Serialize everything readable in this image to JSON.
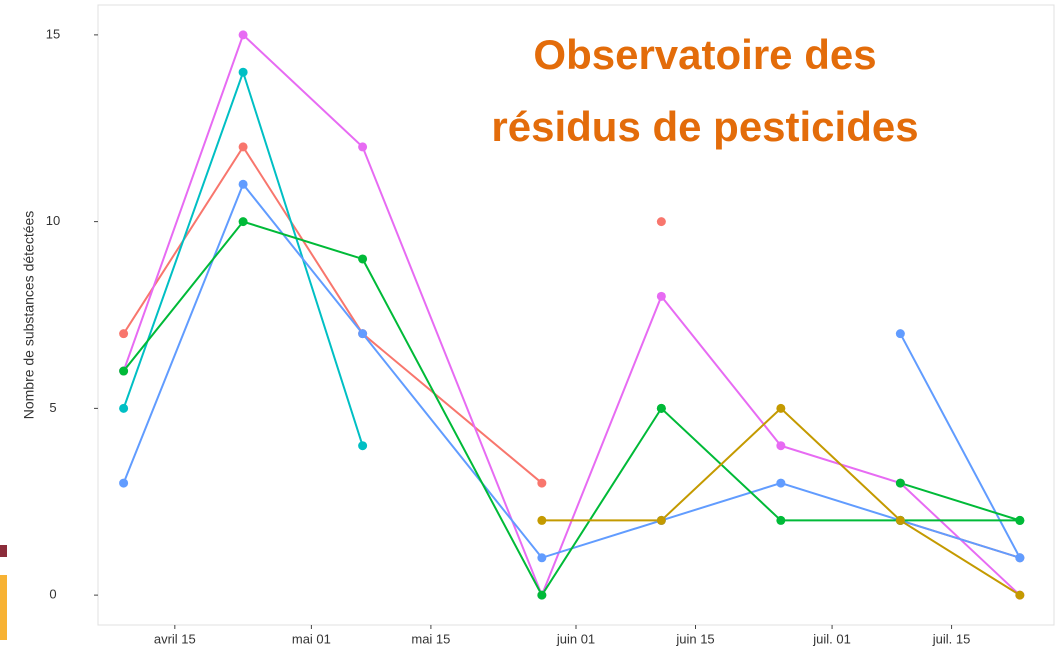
{
  "chart_data": {
    "type": "line",
    "title": [
      "Observatoire des",
      "résidus de pesticides"
    ],
    "ylabel": "Nombre de substances détectées",
    "x": [
      "04-09",
      "04-23",
      "05-07",
      "05-28",
      "06-11",
      "06-25",
      "07-09",
      "07-23"
    ],
    "xlim": [
      "04-06",
      "07-27"
    ],
    "xticks": [
      {
        "value": "04-15",
        "label": "avril 15"
      },
      {
        "value": "05-01",
        "label": "mai 01"
      },
      {
        "value": "05-15",
        "label": "mai 15"
      },
      {
        "value": "06-01",
        "label": "juin 01"
      },
      {
        "value": "06-15",
        "label": "juin 15"
      },
      {
        "value": "07-01",
        "label": "juil. 01"
      },
      {
        "value": "07-15",
        "label": "juil. 15"
      }
    ],
    "ylim": [
      -0.8,
      15.8
    ],
    "yticks": [
      0,
      5,
      10,
      15
    ],
    "grid": false,
    "series": [
      {
        "color": "#f8766d",
        "values": [
          7,
          12,
          7,
          3,
          null,
          null,
          null,
          null
        ]
      },
      {
        "color": "#f8766d",
        "values": [
          null,
          null,
          null,
          null,
          10,
          null,
          2,
          1
        ]
      },
      {
        "color": "#e76bf3",
        "values": [
          6,
          15,
          12,
          0,
          8,
          4,
          3,
          0
        ]
      },
      {
        "color": "#00bfc4",
        "values": [
          5,
          14,
          4,
          null,
          null,
          null,
          null,
          null
        ]
      },
      {
        "color": "#619cff",
        "values": [
          3,
          11,
          7,
          1,
          2,
          3,
          2,
          1
        ]
      },
      {
        "color": "#619cff",
        "values": [
          null,
          null,
          null,
          null,
          2,
          null,
          7,
          1
        ]
      },
      {
        "color": "#00ba38",
        "values": [
          6,
          10,
          9,
          0,
          5,
          2,
          2,
          2
        ]
      },
      {
        "color": "#00ba38",
        "values": [
          null,
          null,
          null,
          null,
          5,
          null,
          3,
          2
        ]
      },
      {
        "color": "#c49a00",
        "values": [
          null,
          null,
          null,
          2,
          2,
          5,
          2,
          0
        ]
      }
    ]
  }
}
